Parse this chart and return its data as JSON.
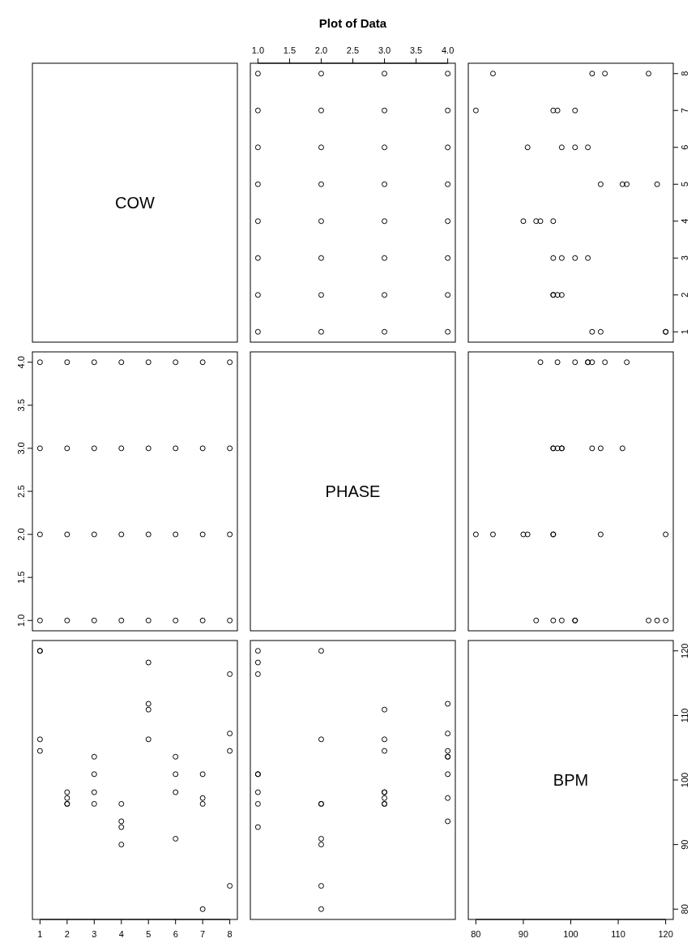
{
  "chart_data": [
    {
      "type": "other",
      "title": "Plot of Data",
      "annotations": [
        "COW"
      ]
    },
    {
      "type": "scatter",
      "marker": "circle",
      "tick_labels": "x",
      "xlim": [
        0.88,
        4.12
      ],
      "xticks": [
        {
          "value": 1,
          "label": "1.0"
        },
        {
          "value": 1.5,
          "label": "1.5"
        },
        {
          "value": 2,
          "label": "2.0"
        },
        {
          "value": 2.5,
          "label": "2.5"
        },
        {
          "value": 3,
          "label": "3.0"
        },
        {
          "value": 3.5,
          "label": "3.5"
        },
        {
          "value": 4,
          "label": "4.0"
        }
      ],
      "ylim": [
        0.72,
        8.28
      ],
      "x": [
        1,
        2,
        3,
        4,
        1,
        2,
        3,
        4,
        1,
        2,
        3,
        4,
        1,
        2,
        3,
        4,
        1,
        2,
        3,
        4,
        1,
        2,
        3,
        4,
        1,
        2,
        3,
        4,
        1,
        2,
        3,
        4
      ],
      "series": [
        {
          "color": "#000000",
          "values": [
            1,
            1,
            1,
            1,
            2,
            2,
            2,
            2,
            3,
            3,
            3,
            3,
            4,
            4,
            4,
            4,
            5,
            5,
            5,
            5,
            6,
            6,
            6,
            6,
            7,
            7,
            7,
            7,
            8,
            8,
            8,
            8
          ]
        }
      ]
    },
    {
      "type": "scatter",
      "marker": "circle",
      "tick_labels": "y",
      "xlim": [
        78.4,
        121.6
      ],
      "ylim": [
        0.72,
        8.28
      ],
      "yticks": [
        1,
        2,
        3,
        4,
        5,
        6,
        7,
        8
      ],
      "x": [
        120,
        120,
        106.3,
        104.5,
        98.1,
        96.3,
        96.3,
        97.2,
        100.9,
        96.3,
        98.1,
        103.6,
        92.7,
        90,
        96.3,
        93.6,
        118.2,
        106.3,
        110.9,
        111.8,
        100.9,
        90.9,
        98.1,
        103.6,
        96.3,
        80,
        97.2,
        100.9,
        116.4,
        83.6,
        104.5,
        107.2
      ],
      "series": [
        {
          "color": "#000000",
          "values": [
            1,
            1,
            1,
            1,
            2,
            2,
            2,
            2,
            3,
            3,
            3,
            3,
            4,
            4,
            4,
            4,
            5,
            5,
            5,
            5,
            6,
            6,
            6,
            6,
            7,
            7,
            7,
            7,
            8,
            8,
            8,
            8
          ]
        }
      ]
    },
    {
      "type": "scatter",
      "marker": "circle",
      "tick_labels": "y",
      "xlim": [
        0.72,
        8.28
      ],
      "ylim": [
        0.88,
        4.12
      ],
      "yticks": [
        {
          "value": 1,
          "label": "1.0"
        },
        {
          "value": 1.5,
          "label": "1.5"
        },
        {
          "value": 2,
          "label": "2.0"
        },
        {
          "value": 2.5,
          "label": "2.5"
        },
        {
          "value": 3,
          "label": "3.0"
        },
        {
          "value": 3.5,
          "label": "3.5"
        },
        {
          "value": 4,
          "label": "4.0"
        }
      ],
      "x": [
        1,
        1,
        1,
        1,
        2,
        2,
        2,
        2,
        3,
        3,
        3,
        3,
        4,
        4,
        4,
        4,
        5,
        5,
        5,
        5,
        6,
        6,
        6,
        6,
        7,
        7,
        7,
        7,
        8,
        8,
        8,
        8
      ],
      "series": [
        {
          "color": "#000000",
          "values": [
            1,
            2,
            3,
            4,
            1,
            2,
            3,
            4,
            1,
            2,
            3,
            4,
            1,
            2,
            3,
            4,
            1,
            2,
            3,
            4,
            1,
            2,
            3,
            4,
            1,
            2,
            3,
            4,
            1,
            2,
            3,
            4
          ]
        }
      ]
    },
    {
      "type": "other",
      "annotations": [
        "PHASE"
      ]
    },
    {
      "type": "scatter",
      "marker": "circle",
      "tick_labels": false,
      "xlim": [
        78.4,
        121.6
      ],
      "ylim": [
        0.88,
        4.12
      ],
      "x": [
        120,
        120,
        106.3,
        104.5,
        98.1,
        96.3,
        96.3,
        97.2,
        100.9,
        96.3,
        98.1,
        103.6,
        92.7,
        90,
        96.3,
        93.6,
        118.2,
        106.3,
        110.9,
        111.8,
        100.9,
        90.9,
        98.1,
        103.6,
        96.3,
        80,
        97.2,
        100.9,
        116.4,
        83.6,
        104.5,
        107.2
      ],
      "series": [
        {
          "color": "#000000",
          "values": [
            1,
            2,
            3,
            4,
            1,
            2,
            3,
            4,
            1,
            2,
            3,
            4,
            1,
            2,
            3,
            4,
            1,
            2,
            3,
            4,
            1,
            2,
            3,
            4,
            1,
            2,
            3,
            4,
            1,
            2,
            3,
            4
          ]
        }
      ]
    },
    {
      "type": "scatter",
      "marker": "circle",
      "tick_labels": "x",
      "xlim": [
        0.72,
        8.28
      ],
      "xticks": [
        1,
        2,
        3,
        4,
        5,
        6,
        7,
        8
      ],
      "ylim": [
        78.4,
        121.6
      ],
      "x": [
        1,
        1,
        1,
        1,
        2,
        2,
        2,
        2,
        3,
        3,
        3,
        3,
        4,
        4,
        4,
        4,
        5,
        5,
        5,
        5,
        6,
        6,
        6,
        6,
        7,
        7,
        7,
        7,
        8,
        8,
        8,
        8
      ],
      "series": [
        {
          "color": "#000000",
          "values": [
            120,
            120,
            106.3,
            104.5,
            98.1,
            96.3,
            96.3,
            97.2,
            100.9,
            96.3,
            98.1,
            103.6,
            92.7,
            90,
            96.3,
            93.6,
            118.2,
            106.3,
            110.9,
            111.8,
            100.9,
            90.9,
            98.1,
            103.6,
            96.3,
            80,
            97.2,
            100.9,
            116.4,
            83.6,
            104.5,
            107.2
          ]
        }
      ]
    },
    {
      "type": "scatter",
      "marker": "circle",
      "tick_labels": false,
      "xlim": [
        0.88,
        4.12
      ],
      "ylim": [
        78.4,
        121.6
      ],
      "x": [
        1,
        2,
        3,
        4,
        1,
        2,
        3,
        4,
        1,
        2,
        3,
        4,
        1,
        2,
        3,
        4,
        1,
        2,
        3,
        4,
        1,
        2,
        3,
        4,
        1,
        2,
        3,
        4,
        1,
        2,
        3,
        4
      ],
      "series": [
        {
          "color": "#000000",
          "values": [
            120,
            120,
            106.3,
            104.5,
            98.1,
            96.3,
            96.3,
            97.2,
            100.9,
            96.3,
            98.1,
            103.6,
            92.7,
            90,
            96.3,
            93.6,
            118.2,
            106.3,
            110.9,
            111.8,
            100.9,
            90.9,
            98.1,
            103.6,
            96.3,
            80,
            97.2,
            100.9,
            116.4,
            83.6,
            104.5,
            107.2
          ]
        }
      ]
    },
    {
      "type": "scatter",
      "annotations": [
        "BPM"
      ],
      "xlim": [
        78.4,
        121.6
      ],
      "xticks": [
        80,
        90,
        100,
        110,
        120
      ],
      "ylim": [
        78.4,
        121.6
      ],
      "yticks": [
        80,
        90,
        100,
        110,
        120
      ]
    }
  ]
}
